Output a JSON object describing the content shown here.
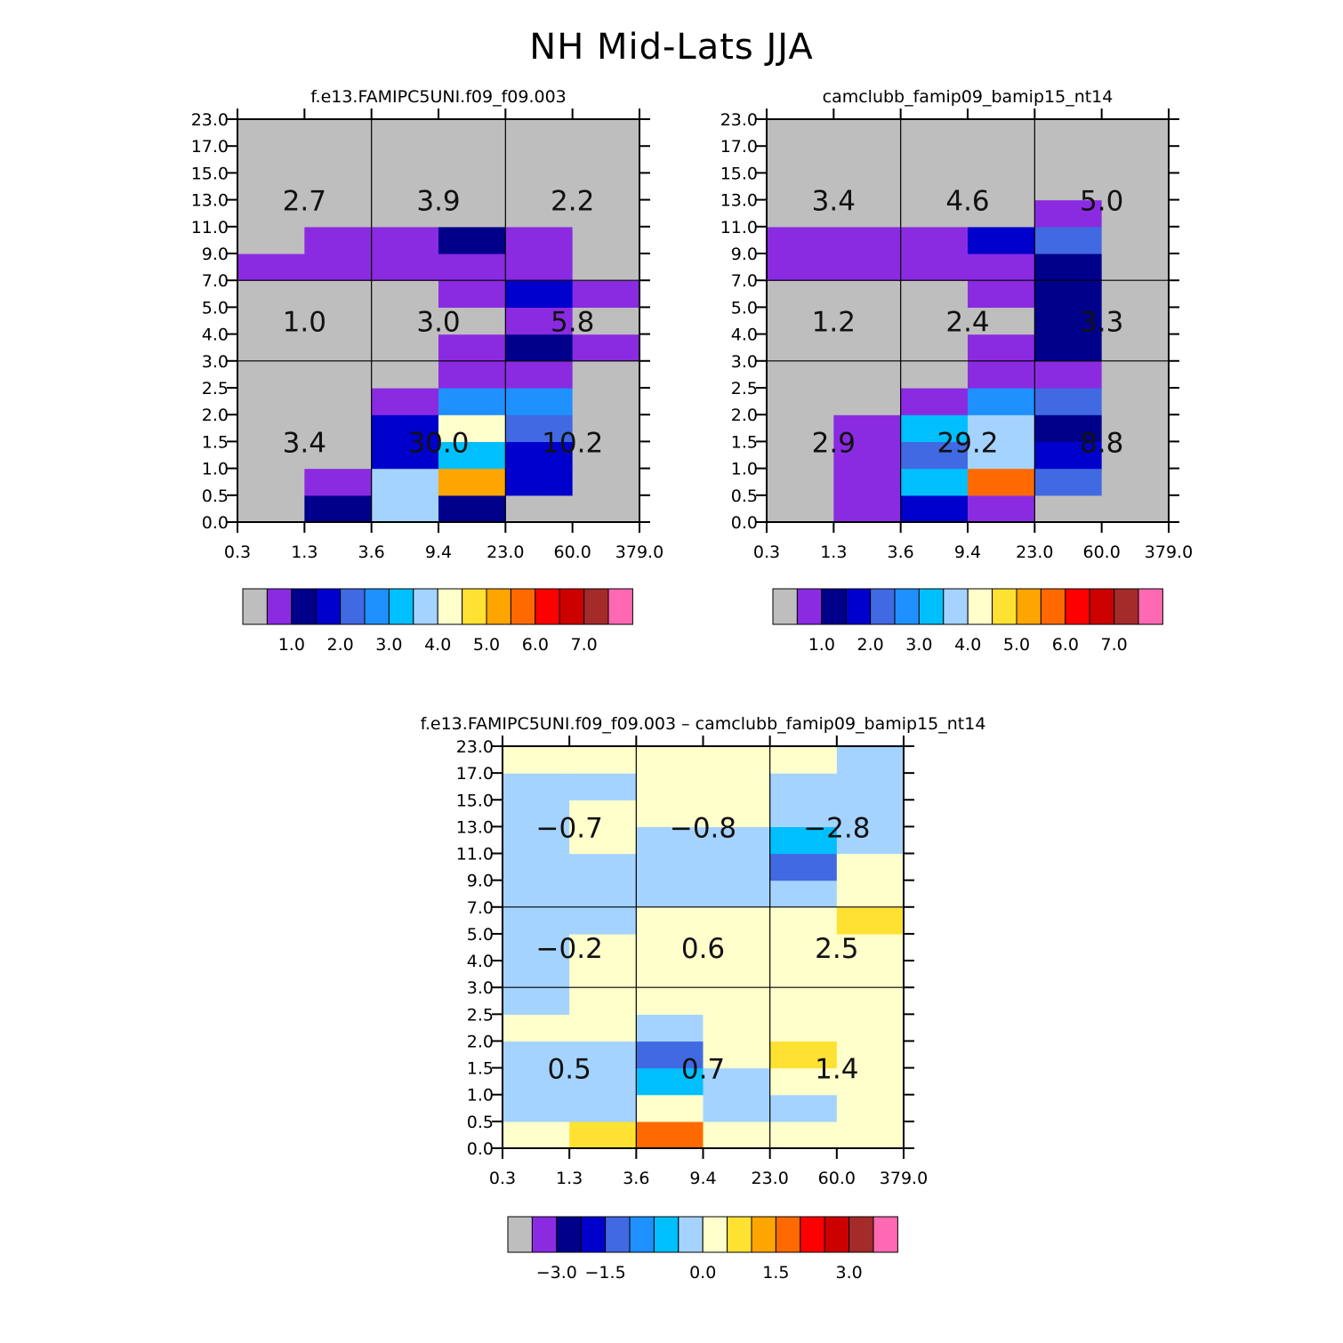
{
  "figure_title": "NH Mid-Lats JJA",
  "palette": [
    "#bebebe",
    "#8a2be2",
    "#00008b",
    "#0000cd",
    "#4169e1",
    "#1e90ff",
    "#00bfff",
    "#a4d3ff",
    "#ffffcc",
    "#ffe132",
    "#ffa500",
    "#ff6a00",
    "#ff0000",
    "#cd0000",
    "#a52a2a",
    "#ff69b4"
  ],
  "chart_data": [
    {
      "type": "heatmap",
      "title": "f.e13.FAMIPC5UNI.f09_f09.003",
      "x_tick_labels": [
        "0.3",
        "1.3",
        "3.6",
        "9.4",
        "23.0",
        "60.0",
        "379.0"
      ],
      "y_tick_labels": [
        "0.0",
        "0.5",
        "1.0",
        "1.5",
        "2.0",
        "2.5",
        "3.0",
        "4.0",
        "5.0",
        "7.0",
        "9.0",
        "11.0",
        "13.0",
        "15.0",
        "17.0",
        "23.0"
      ],
      "cells": [
        [
          0,
          2,
          7,
          2,
          0,
          0
        ],
        [
          0,
          1,
          7,
          10,
          3,
          0
        ],
        [
          0,
          0,
          3,
          6,
          3,
          0
        ],
        [
          0,
          0,
          3,
          8,
          4,
          0
        ],
        [
          0,
          0,
          1,
          5,
          5,
          0
        ],
        [
          0,
          0,
          0,
          1,
          1,
          0
        ],
        [
          0,
          0,
          0,
          1,
          2,
          1
        ],
        [
          0,
          0,
          0,
          0,
          1,
          0
        ],
        [
          0,
          0,
          0,
          1,
          3,
          1
        ],
        [
          1,
          1,
          1,
          1,
          1,
          0
        ],
        [
          0,
          1,
          1,
          2,
          1,
          0
        ],
        [
          0,
          0,
          0,
          0,
          0,
          0
        ],
        [
          0,
          0,
          0,
          0,
          0,
          0
        ],
        [
          0,
          0,
          0,
          0,
          0,
          0
        ],
        [
          0,
          0,
          0,
          0,
          0,
          0
        ]
      ],
      "region_labels": [
        {
          "text": "3.4",
          "col": 1,
          "row": 0
        },
        {
          "text": "30.0",
          "col": 3,
          "row": 0
        },
        {
          "text": "10.2",
          "col": 5,
          "row": 0
        },
        {
          "text": "1.0",
          "col": 1,
          "row": 1
        },
        {
          "text": "3.0",
          "col": 3,
          "row": 1
        },
        {
          "text": "5.8",
          "col": 5,
          "row": 1
        },
        {
          "text": "2.7",
          "col": 1,
          "row": 2
        },
        {
          "text": "3.9",
          "col": 3,
          "row": 2
        },
        {
          "text": "2.2",
          "col": 5,
          "row": 2
        }
      ],
      "colorbar_labels": [
        "1.0",
        "2.0",
        "3.0",
        "4.0",
        "5.0",
        "6.0",
        "7.0"
      ]
    },
    {
      "type": "heatmap",
      "title": "camclubb_famip09_bamip15_nt14",
      "x_tick_labels": [
        "0.3",
        "1.3",
        "3.6",
        "9.4",
        "23.0",
        "60.0",
        "379.0"
      ],
      "y_tick_labels": [
        "0.0",
        "0.5",
        "1.0",
        "1.5",
        "2.0",
        "2.5",
        "3.0",
        "4.0",
        "5.0",
        "7.0",
        "9.0",
        "11.0",
        "13.0",
        "15.0",
        "17.0",
        "23.0"
      ],
      "cells": [
        [
          0,
          1,
          3,
          1,
          0,
          0
        ],
        [
          0,
          1,
          6,
          11,
          4,
          0
        ],
        [
          0,
          1,
          4,
          7,
          3,
          0
        ],
        [
          0,
          1,
          6,
          7,
          2,
          0
        ],
        [
          0,
          0,
          1,
          5,
          4,
          0
        ],
        [
          0,
          0,
          0,
          1,
          1,
          0
        ],
        [
          0,
          0,
          0,
          1,
          2,
          0
        ],
        [
          0,
          0,
          0,
          0,
          2,
          0
        ],
        [
          0,
          0,
          0,
          1,
          2,
          0
        ],
        [
          1,
          1,
          1,
          1,
          2,
          0
        ],
        [
          1,
          1,
          1,
          3,
          4,
          0
        ],
        [
          0,
          0,
          0,
          0,
          1,
          0
        ],
        [
          0,
          0,
          0,
          0,
          0,
          0
        ],
        [
          0,
          0,
          0,
          0,
          0,
          0
        ],
        [
          0,
          0,
          0,
          0,
          0,
          0
        ]
      ],
      "region_labels": [
        {
          "text": "2.9",
          "col": 1,
          "row": 0
        },
        {
          "text": "29.2",
          "col": 3,
          "row": 0
        },
        {
          "text": "8.8",
          "col": 5,
          "row": 0
        },
        {
          "text": "1.2",
          "col": 1,
          "row": 1
        },
        {
          "text": "2.4",
          "col": 3,
          "row": 1
        },
        {
          "text": "3.3",
          "col": 5,
          "row": 1
        },
        {
          "text": "3.4",
          "col": 1,
          "row": 2
        },
        {
          "text": "4.6",
          "col": 3,
          "row": 2
        },
        {
          "text": "5.0",
          "col": 5,
          "row": 2
        }
      ],
      "colorbar_labels": [
        "1.0",
        "2.0",
        "3.0",
        "4.0",
        "5.0",
        "6.0",
        "7.0"
      ]
    },
    {
      "type": "heatmap",
      "title": "f.e13.FAMIPC5UNI.f09_f09.003 – camclubb_famip09_bamip15_nt14",
      "x_tick_labels": [
        "0.3",
        "1.3",
        "3.6",
        "9.4",
        "23.0",
        "60.0",
        "379.0"
      ],
      "y_tick_labels": [
        "0.0",
        "0.5",
        "1.0",
        "1.5",
        "2.0",
        "2.5",
        "3.0",
        "4.0",
        "5.0",
        "7.0",
        "9.0",
        "11.0",
        "13.0",
        "15.0",
        "17.0",
        "23.0"
      ],
      "cells": [
        [
          8,
          9,
          11,
          8,
          8,
          8
        ],
        [
          7,
          7,
          8,
          7,
          7,
          8
        ],
        [
          7,
          7,
          6,
          7,
          8,
          8
        ],
        [
          7,
          7,
          4,
          8,
          9,
          8
        ],
        [
          8,
          8,
          7,
          8,
          8,
          8
        ],
        [
          7,
          8,
          8,
          8,
          8,
          8
        ],
        [
          7,
          8,
          8,
          8,
          8,
          8
        ],
        [
          7,
          8,
          8,
          8,
          8,
          8
        ],
        [
          7,
          7,
          8,
          8,
          8,
          9
        ],
        [
          7,
          7,
          7,
          7,
          7,
          8
        ],
        [
          7,
          7,
          7,
          7,
          4,
          8
        ],
        [
          7,
          8,
          7,
          7,
          6,
          7
        ],
        [
          7,
          8,
          8,
          8,
          7,
          7
        ],
        [
          7,
          7,
          8,
          8,
          7,
          7
        ],
        [
          8,
          8,
          8,
          8,
          8,
          7
        ]
      ],
      "region_labels": [
        {
          "text": "0.5",
          "col": 1,
          "row": 0
        },
        {
          "text": "0.7",
          "col": 3,
          "row": 0
        },
        {
          "text": "1.4",
          "col": 5,
          "row": 0
        },
        {
          "text": "−0.2",
          "col": 1,
          "row": 1
        },
        {
          "text": "0.6",
          "col": 3,
          "row": 1
        },
        {
          "text": "2.5",
          "col": 5,
          "row": 1
        },
        {
          "text": "−0.7",
          "col": 1,
          "row": 2
        },
        {
          "text": "−0.8",
          "col": 3,
          "row": 2
        },
        {
          "text": "−2.8",
          "col": 5,
          "row": 2
        }
      ],
      "colorbar_labels": [
        "−3.0",
        "−1.5",
        "0.0",
        "1.5",
        "3.0"
      ]
    }
  ]
}
